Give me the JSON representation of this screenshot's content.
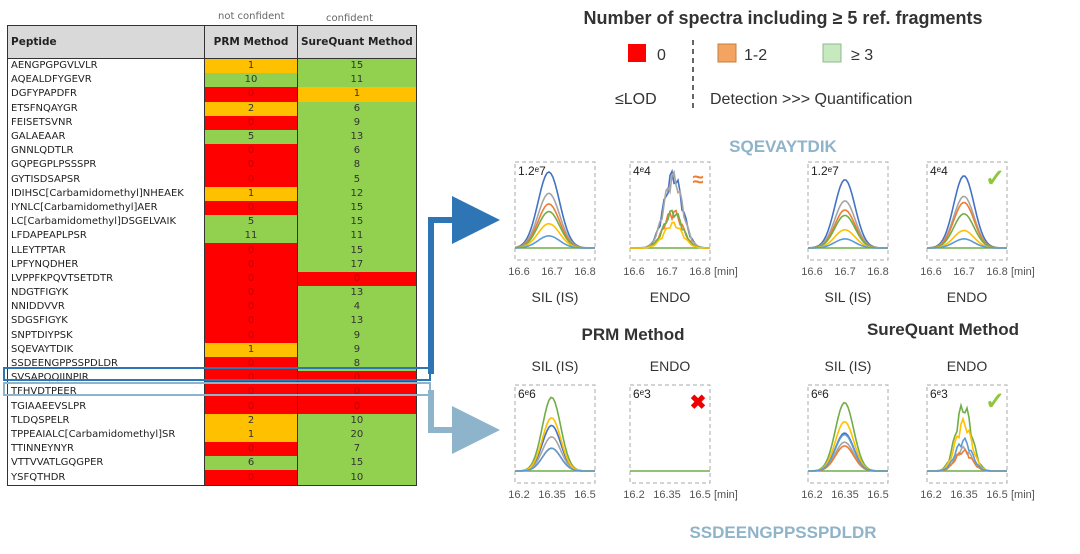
{
  "table": {
    "group_labels": {
      "prm": "not confident",
      "sq": "confident"
    },
    "headers": {
      "peptide": "Peptide",
      "prm": "PRM Method",
      "sq": "SureQuant Method"
    },
    "rows": [
      {
        "peptide": "AENGPGPGVLVLR",
        "prm": "1",
        "sq": "15"
      },
      {
        "peptide": "AQEALDFYGEVR",
        "prm": "10",
        "sq": "11"
      },
      {
        "peptide": "DGFYPAPDFR",
        "prm": "0",
        "sq": "1"
      },
      {
        "peptide": "ETSFNQAYGR",
        "prm": "2",
        "sq": "6"
      },
      {
        "peptide": "FEISETSVNR",
        "prm": "0",
        "sq": "9"
      },
      {
        "peptide": "GALAEAAR",
        "prm": "5",
        "sq": "13"
      },
      {
        "peptide": "GNNLQDTLR",
        "prm": "0",
        "sq": "6"
      },
      {
        "peptide": "GQPEGPLPSSSPR",
        "prm": "0",
        "sq": "8"
      },
      {
        "peptide": "GYTISDSAPSR",
        "prm": "0",
        "sq": "5"
      },
      {
        "peptide": "IDIHSC[Carbamidomethyl]NHEAEK",
        "prm": "1",
        "sq": "12"
      },
      {
        "peptide": "IYNLC[Carbamidomethyl]AER",
        "prm": "0",
        "sq": "15"
      },
      {
        "peptide": "LC[Carbamidomethyl]DSGELVAIK",
        "prm": "5",
        "sq": "15"
      },
      {
        "peptide": "LFDAPEAPLPSR",
        "prm": "11",
        "sq": "11"
      },
      {
        "peptide": "LLEYTPTAR",
        "prm": "0",
        "sq": "15"
      },
      {
        "peptide": "LPFYNQDHER",
        "prm": "0",
        "sq": "17"
      },
      {
        "peptide": "LVPPFKPQVTSETDTR",
        "prm": "0",
        "sq": "0"
      },
      {
        "peptide": "NDGTFIGYK",
        "prm": "0",
        "sq": "13"
      },
      {
        "peptide": "NNIDDVVR",
        "prm": "0",
        "sq": "4"
      },
      {
        "peptide": "SDGSFIGYK",
        "prm": "0",
        "sq": "13"
      },
      {
        "peptide": "SNPTDIYPSK",
        "prm": "0",
        "sq": "9"
      },
      {
        "peptide": "SQEVAYTDIK",
        "prm": "1",
        "sq": "9"
      },
      {
        "peptide": "SSDEENGPPSSPDLDR",
        "prm": "0",
        "sq": "8"
      },
      {
        "peptide": "SVSAPQQIINPIR",
        "prm": "0",
        "sq": "0"
      },
      {
        "peptide": "TFHVDTPEER",
        "prm": "0",
        "sq": "0"
      },
      {
        "peptide": "TGIAAEEVSLPR",
        "prm": "0",
        "sq": "0"
      },
      {
        "peptide": "TLDQSPELR",
        "prm": "2",
        "sq": "10"
      },
      {
        "peptide": "TPPEAIALC[Carbamidomethyl]SR",
        "prm": "1",
        "sq": "20"
      },
      {
        "peptide": "TTINNEYNYR",
        "prm": "0",
        "sq": "7"
      },
      {
        "peptide": "VTTVVATLGQGPER",
        "prm": "6",
        "sq": "15"
      },
      {
        "peptide": "YSFQTHDR",
        "prm": "0",
        "sq": "10"
      }
    ]
  },
  "colors": {
    "zero": "#ff0000",
    "low": "#ffc000",
    "high": "#92d050",
    "zero_text": "#c00000",
    "highlight1": "#2e75b6",
    "highlight2": "#8eb4cb",
    "peptide_title": "#8fb3c9"
  },
  "legend": {
    "title": "Number of spectra including ≥ 5 ref. fragments",
    "items": [
      {
        "label": "0",
        "color": "#ff0000"
      },
      {
        "label": "1-2",
        "color": "#f4a460"
      },
      {
        "label": "≥ 3",
        "color": "#c6e9c0"
      }
    ],
    "lod": "≤LOD",
    "detection": "Detection >>> Quantification"
  },
  "figure": {
    "peptide_top": "SQEVAYTDIK",
    "peptide_bottom": "SSDEENGPPSSPDLDR",
    "prm_title": "PRM Method",
    "sq_title": "SureQuant Method",
    "sil_label": "SIL (IS)",
    "endo_label": "ENDO",
    "unit": "[min]",
    "top_ticks": [
      "16.6",
      "16.7",
      "16.8"
    ],
    "bottom_ticks": [
      "16.2",
      "16.35",
      "16.5"
    ],
    "panels": [
      {
        "id": "top-prm-sil",
        "scale": "1.2e7",
        "mark": "",
        "range": [
          16.6,
          16.86
        ],
        "rt": 16.71,
        "width": 0.035,
        "peaks": [
          1.0,
          0.72,
          0.58,
          0.48,
          0.32,
          0.16
        ]
      },
      {
        "id": "top-prm-endo",
        "scale": "4e4",
        "mark": "≈",
        "range": [
          16.58,
          16.84
        ],
        "rt": 16.72,
        "width": 0.03,
        "peaks": [
          0.9,
          0.88,
          0.45,
          0.45,
          0.3,
          0.0
        ],
        "noisy": true
      },
      {
        "id": "top-sq-sil",
        "scale": "1.2e7",
        "mark": "",
        "range": [
          16.6,
          16.86
        ],
        "rt": 16.72,
        "width": 0.033,
        "peaks": [
          0.9,
          0.62,
          0.5,
          0.43,
          0.24,
          0.12
        ]
      },
      {
        "id": "top-sq-endo",
        "scale": "4e4",
        "mark": "✓",
        "range": [
          16.6,
          16.86
        ],
        "rt": 16.72,
        "width": 0.033,
        "peaks": [
          0.95,
          0.68,
          0.6,
          0.45,
          0.23,
          0.12
        ]
      },
      {
        "id": "bot-prm-sil",
        "scale": "6e6",
        "mark": "",
        "range": [
          16.2,
          16.55
        ],
        "rt": 16.36,
        "width": 0.04,
        "peaks": [
          0.6,
          0.45,
          0.3,
          0.97,
          0.7,
          0.3
        ]
      },
      {
        "id": "bot-prm-endo",
        "scale": "6e3",
        "mark": "✖",
        "range": [
          16.2,
          16.55
        ],
        "rt": 16.36,
        "width": 0.04,
        "peaks": [
          0,
          0,
          0,
          0,
          0,
          0
        ]
      },
      {
        "id": "bot-sq-sil",
        "scale": "6e6",
        "mark": "",
        "range": [
          16.2,
          16.55
        ],
        "rt": 16.36,
        "width": 0.04,
        "peaks": [
          0.5,
          0.38,
          0.33,
          0.9,
          0.65,
          0.48
        ]
      },
      {
        "id": "bot-sq-endo",
        "scale": "6e3",
        "mark": "✓",
        "range": [
          16.2,
          16.55
        ],
        "rt": 16.36,
        "width": 0.035,
        "peaks": [
          0.0,
          0.28,
          0.25,
          0.8,
          0.6,
          0.38
        ],
        "noisy": true
      }
    ],
    "trace_colors": [
      "#4472c4",
      "#a5a5a5",
      "#ed7d31",
      "#70ad47",
      "#ffc000",
      "#5b9bd5"
    ]
  }
}
